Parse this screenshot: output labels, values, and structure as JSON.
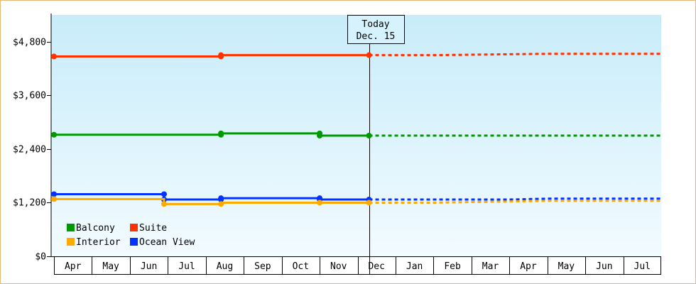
{
  "chart_data": {
    "type": "line",
    "y_axis": {
      "ylim": [
        0,
        5400
      ],
      "ticks": [
        0,
        1200,
        2400,
        3600,
        4800
      ],
      "tick_labels": [
        "$0",
        "$1,200",
        "$2,400",
        "$3,600",
        "$4,800"
      ]
    },
    "months": [
      "Apr",
      "May",
      "Jun",
      "Jul",
      "Aug",
      "Sep",
      "Oct",
      "Nov",
      "Dec",
      "Jan",
      "Feb",
      "Mar",
      "Apr",
      "May",
      "Jun",
      "Jul"
    ],
    "today": {
      "line1": "Today",
      "line2": "Dec. 15",
      "x": 8.3
    },
    "series": [
      {
        "name": "Suite",
        "color": "#ff3300",
        "actual": [
          [
            0,
            4470
          ],
          [
            4.4,
            4470
          ],
          [
            4.4,
            4500
          ],
          [
            8.3,
            4500
          ]
        ],
        "markers": [
          [
            0,
            4470
          ],
          [
            4.4,
            4470
          ],
          [
            4.4,
            4500
          ],
          [
            8.3,
            4500
          ]
        ],
        "forecast": [
          [
            8.3,
            4500
          ],
          [
            10.0,
            4500
          ],
          [
            13.0,
            4530
          ],
          [
            16.0,
            4530
          ]
        ]
      },
      {
        "name": "Balcony",
        "color": "#009900",
        "actual": [
          [
            0,
            2720
          ],
          [
            4.4,
            2720
          ],
          [
            4.4,
            2750
          ],
          [
            7.0,
            2750
          ],
          [
            7.0,
            2700
          ],
          [
            8.3,
            2700
          ]
        ],
        "markers": [
          [
            0,
            2720
          ],
          [
            4.4,
            2720
          ],
          [
            4.4,
            2750
          ],
          [
            7.0,
            2750
          ],
          [
            7.0,
            2700
          ],
          [
            8.3,
            2700
          ]
        ],
        "forecast": [
          [
            8.3,
            2700
          ],
          [
            16.0,
            2700
          ]
        ]
      },
      {
        "name": "Ocean View",
        "color": "#0033ff",
        "actual": [
          [
            0,
            1390
          ],
          [
            2.9,
            1390
          ],
          [
            2.9,
            1270
          ],
          [
            4.4,
            1270
          ],
          [
            4.4,
            1300
          ],
          [
            7.0,
            1300
          ],
          [
            7.0,
            1270
          ],
          [
            8.3,
            1270
          ]
        ],
        "markers": [
          [
            0,
            1390
          ],
          [
            2.9,
            1390
          ],
          [
            2.9,
            1270
          ],
          [
            4.4,
            1270
          ],
          [
            4.4,
            1300
          ],
          [
            7.0,
            1300
          ],
          [
            7.0,
            1270
          ],
          [
            8.3,
            1270
          ]
        ],
        "forecast": [
          [
            8.3,
            1270
          ],
          [
            12.0,
            1270
          ],
          [
            13.0,
            1290
          ],
          [
            16.0,
            1290
          ]
        ]
      },
      {
        "name": "Interior",
        "color": "#ffaa00",
        "actual": [
          [
            0,
            1280
          ],
          [
            2.9,
            1280
          ],
          [
            2.9,
            1170
          ],
          [
            4.4,
            1170
          ],
          [
            4.4,
            1200
          ],
          [
            7.0,
            1200
          ],
          [
            7.0,
            1200
          ],
          [
            8.3,
            1200
          ]
        ],
        "markers": [
          [
            0,
            1280
          ],
          [
            2.9,
            1170
          ],
          [
            4.4,
            1170
          ],
          [
            7.0,
            1200
          ],
          [
            8.3,
            1200
          ]
        ],
        "forecast": [
          [
            8.3,
            1200
          ],
          [
            10.0,
            1200
          ],
          [
            13.0,
            1240
          ],
          [
            16.0,
            1240
          ]
        ]
      }
    ],
    "legend": [
      {
        "name": "Balcony",
        "color": "#009900"
      },
      {
        "name": "Suite",
        "color": "#ff3300"
      },
      {
        "name": "Interior",
        "color": "#ffaa00"
      },
      {
        "name": "Ocean View",
        "color": "#0033ff"
      }
    ]
  }
}
